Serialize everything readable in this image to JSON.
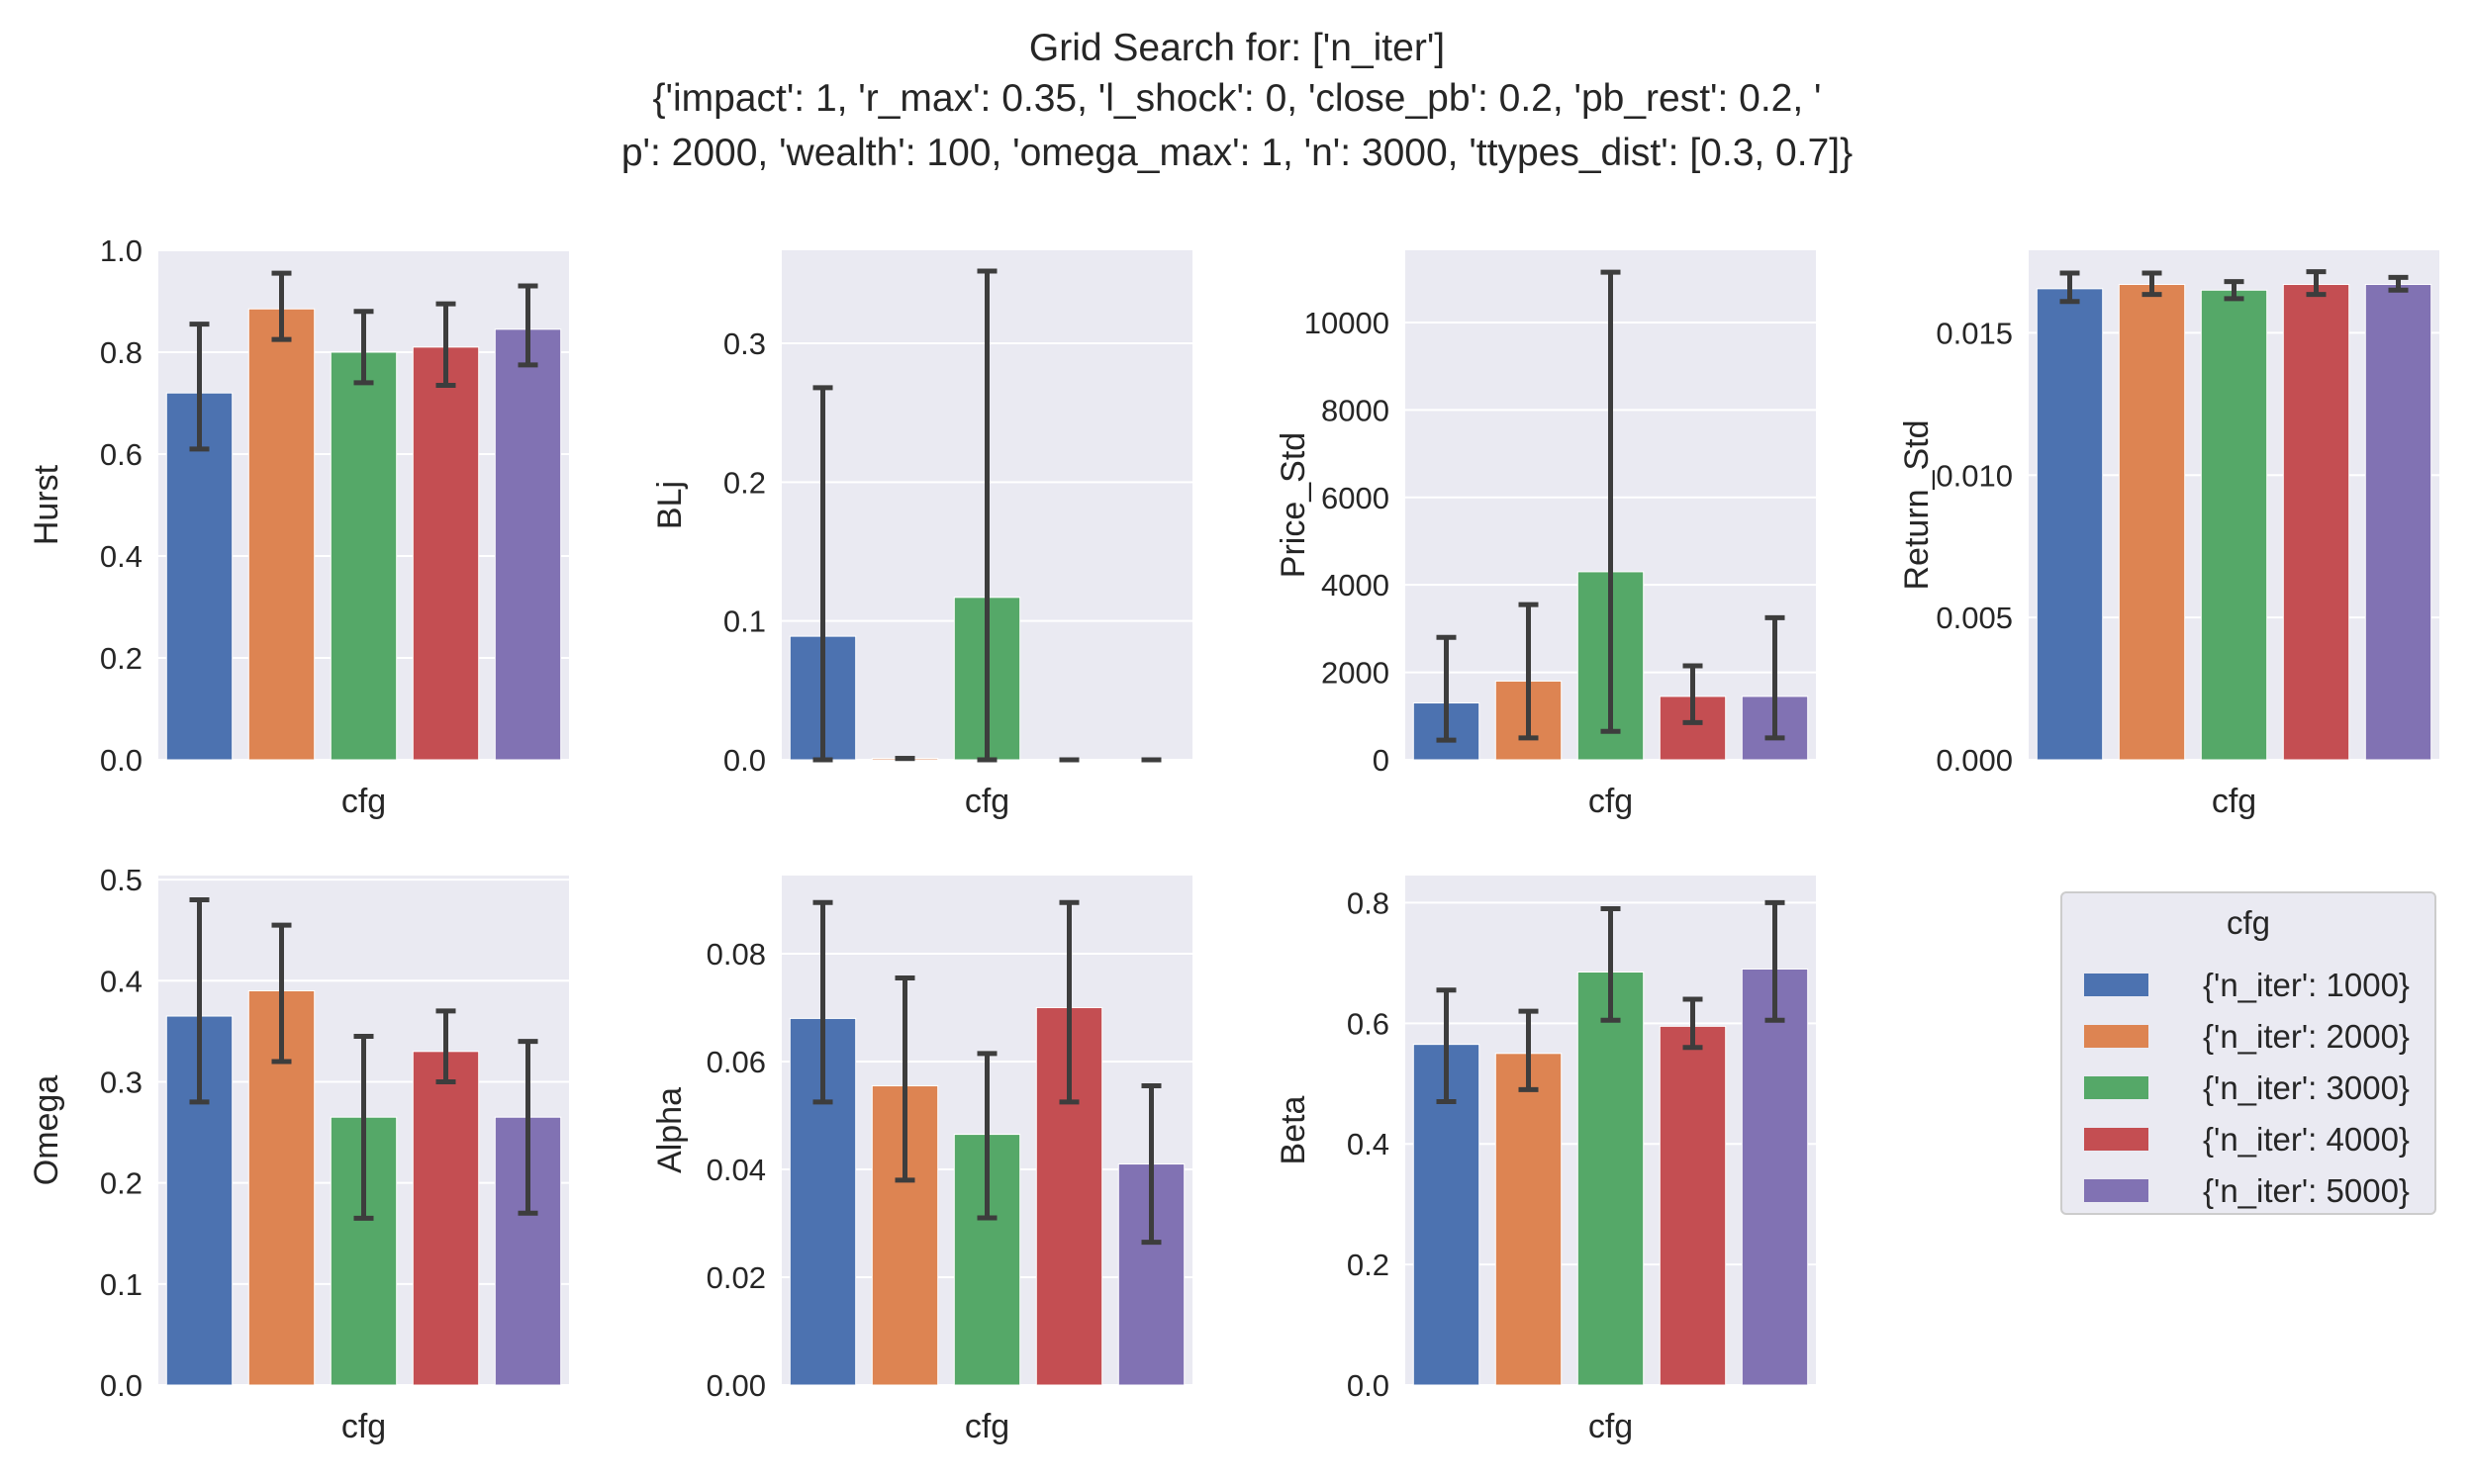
{
  "figure": {
    "title_lines": [
      "Grid Search for: ['n_iter']",
      "{'impact': 1, 'r_max': 0.35, 'l_shock': 0, 'close_pb': 0.2, 'pb_rest': 0.2, '",
      "p': 2000, 'wealth': 100, 'omega_max': 1, 'n': 3000, 'ttypes_dist': [0.3, 0.7]}"
    ]
  },
  "legend": {
    "title": "cfg",
    "placement": "right",
    "items": [
      {
        "label": "{'n_iter': 1000}",
        "color": "#4c72b0"
      },
      {
        "label": "{'n_iter': 2000}",
        "color": "#dd8452"
      },
      {
        "label": "{'n_iter': 3000}",
        "color": "#55a868"
      },
      {
        "label": "{'n_iter': 4000}",
        "color": "#c44e52"
      },
      {
        "label": "{'n_iter': 5000}",
        "color": "#8172b3"
      }
    ]
  },
  "chart_data": [
    {
      "type": "bar",
      "xlabel": "cfg",
      "ylabel": "Hurst",
      "ylim": [
        0,
        1.0
      ],
      "yticks": [
        "0.0",
        "0.2",
        "0.4",
        "0.6",
        "0.8",
        "1.0"
      ],
      "grid": true,
      "categories": [
        "{'n_iter': 1000}",
        "{'n_iter': 2000}",
        "{'n_iter': 3000}",
        "{'n_iter': 4000}",
        "{'n_iter': 5000}"
      ],
      "values": [
        0.72,
        0.885,
        0.8,
        0.81,
        0.845
      ],
      "error_low": [
        0.61,
        0.825,
        0.74,
        0.735,
        0.775
      ],
      "error_high": [
        0.855,
        0.955,
        0.88,
        0.895,
        0.93
      ]
    },
    {
      "type": "bar",
      "xlabel": "cfg",
      "ylabel": "BLj",
      "ylim": [
        0,
        0.367
      ],
      "yticks": [
        "0.0",
        "0.1",
        "0.2",
        "0.3"
      ],
      "grid": true,
      "categories": [
        "{'n_iter': 1000}",
        "{'n_iter': 2000}",
        "{'n_iter': 3000}",
        "{'n_iter': 4000}",
        "{'n_iter': 5000}"
      ],
      "values": [
        0.089,
        0.001,
        0.117,
        0.0,
        0.0
      ],
      "error_low": [
        0.0,
        0.001,
        0.0,
        0.0,
        0.0
      ],
      "error_high": [
        0.268,
        0.001,
        0.352,
        0.0,
        0.0
      ]
    },
    {
      "type": "bar",
      "xlabel": "cfg",
      "ylabel": "Price_Std",
      "ylim": [
        0,
        11650
      ],
      "yticks": [
        "0",
        "2000",
        "4000",
        "6000",
        "8000",
        "10000"
      ],
      "grid": true,
      "categories": [
        "{'n_iter': 1000}",
        "{'n_iter': 2000}",
        "{'n_iter': 3000}",
        "{'n_iter': 4000}",
        "{'n_iter': 5000}"
      ],
      "values": [
        1300,
        1800,
        4300,
        1450,
        1450
      ],
      "error_low": [
        450,
        500,
        650,
        850,
        500
      ],
      "error_high": [
        2800,
        3550,
        11150,
        2150,
        3250
      ]
    },
    {
      "type": "bar",
      "xlabel": "cfg",
      "ylabel": "Return_Std",
      "ylim": [
        0,
        0.0179
      ],
      "yticks": [
        "0.000",
        "0.005",
        "0.010",
        "0.015"
      ],
      "grid": true,
      "categories": [
        "{'n_iter': 1000}",
        "{'n_iter': 2000}",
        "{'n_iter': 3000}",
        "{'n_iter': 4000}",
        "{'n_iter': 5000}"
      ],
      "values": [
        0.01655,
        0.0167,
        0.0165,
        0.0167,
        0.0167
      ],
      "error_low": [
        0.0161,
        0.01635,
        0.0162,
        0.01635,
        0.0165
      ],
      "error_high": [
        0.0171,
        0.0171,
        0.0168,
        0.01715,
        0.01695
      ]
    },
    {
      "type": "bar",
      "xlabel": "cfg",
      "ylabel": "Omega",
      "ylim": [
        0,
        0.504
      ],
      "yticks": [
        "0.0",
        "0.1",
        "0.2",
        "0.3",
        "0.4",
        "0.5"
      ],
      "grid": true,
      "categories": [
        "{'n_iter': 1000}",
        "{'n_iter': 2000}",
        "{'n_iter': 3000}",
        "{'n_iter': 4000}",
        "{'n_iter': 5000}"
      ],
      "values": [
        0.365,
        0.39,
        0.265,
        0.33,
        0.265
      ],
      "error_low": [
        0.28,
        0.32,
        0.165,
        0.3,
        0.17
      ],
      "error_high": [
        0.48,
        0.455,
        0.345,
        0.37,
        0.34
      ]
    },
    {
      "type": "bar",
      "xlabel": "cfg",
      "ylabel": "Alpha",
      "ylim": [
        0,
        0.0945
      ],
      "yticks": [
        "0.00",
        "0.02",
        "0.04",
        "0.06",
        "0.08"
      ],
      "grid": true,
      "categories": [
        "{'n_iter': 1000}",
        "{'n_iter': 2000}",
        "{'n_iter': 3000}",
        "{'n_iter': 4000}",
        "{'n_iter': 5000}"
      ],
      "values": [
        0.068,
        0.0555,
        0.0465,
        0.07,
        0.041
      ],
      "error_low": [
        0.0525,
        0.038,
        0.031,
        0.0525,
        0.0265
      ],
      "error_high": [
        0.0895,
        0.0755,
        0.0615,
        0.0895,
        0.0555
      ]
    },
    {
      "type": "bar",
      "xlabel": "cfg",
      "ylabel": "Beta",
      "ylim": [
        0,
        0.845
      ],
      "yticks": [
        "0.0",
        "0.2",
        "0.4",
        "0.6",
        "0.8"
      ],
      "grid": true,
      "categories": [
        "{'n_iter': 1000}",
        "{'n_iter': 2000}",
        "{'n_iter': 3000}",
        "{'n_iter': 4000}",
        "{'n_iter': 5000}"
      ],
      "values": [
        0.565,
        0.55,
        0.685,
        0.595,
        0.69
      ],
      "error_low": [
        0.47,
        0.49,
        0.605,
        0.56,
        0.605
      ],
      "error_high": [
        0.655,
        0.62,
        0.79,
        0.64,
        0.8
      ]
    }
  ]
}
